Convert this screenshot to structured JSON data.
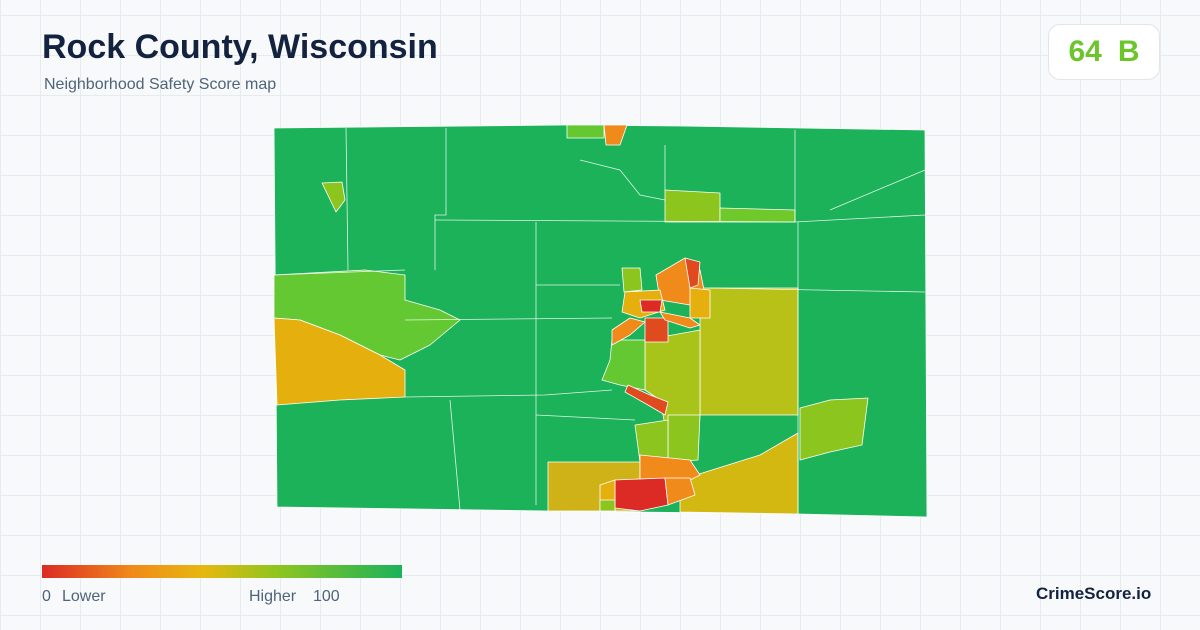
{
  "header": {
    "title": "Rock County, Wisconsin",
    "subtitle": "Neighborhood Safety Score map"
  },
  "score": {
    "value": 64,
    "grade": "B"
  },
  "legend": {
    "min": 0,
    "min_label": "Lower",
    "max_label": "Higher",
    "max": 100
  },
  "brand": "CrimeScore.io"
}
